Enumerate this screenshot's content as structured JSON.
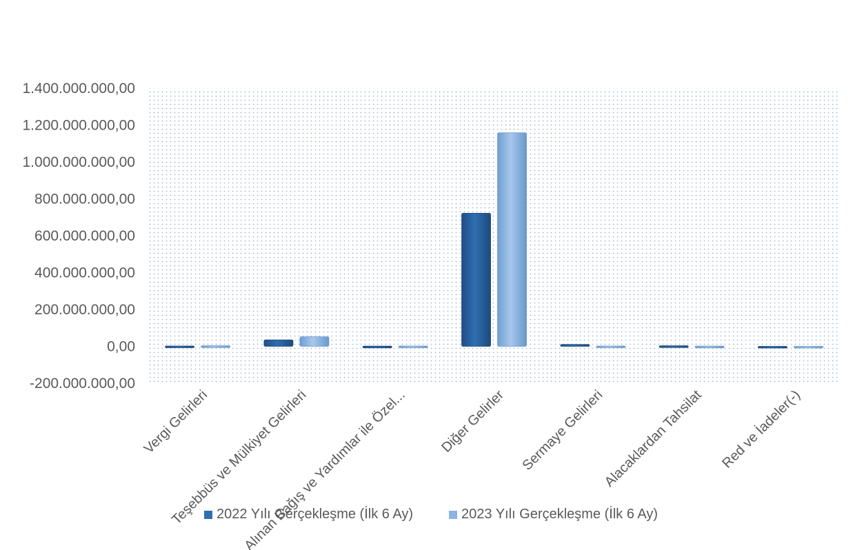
{
  "chart_data": {
    "type": "bar",
    "title": "",
    "xlabel": "",
    "ylabel": "",
    "ylim": [
      -200000000,
      1400000000
    ],
    "yticks": [
      -200000000,
      0,
      200000000,
      400000000,
      600000000,
      800000000,
      1000000000,
      1200000000,
      1400000000
    ],
    "ytick_labels": [
      "-200.000.000,00",
      "0,00",
      "200.000.000,00",
      "400.000.000,00",
      "600.000.000,00",
      "800.000.000,00",
      "1.000.000.000,00",
      "1.200.000.000,00",
      "1.400.000.000,00"
    ],
    "grid": true,
    "legend_position": "bottom",
    "categories": [
      "Vergi Gelirleri",
      "Teşebbüs ve Mülkiyet Gelirleri",
      "Alınan Bağış ve Yardımlar ile Özel...",
      "Diğer Gelirler",
      "Sermaye Gelirleri",
      "Alacaklardan Tahsilat",
      "Red ve İadeler(-)"
    ],
    "series": [
      {
        "name": "2022 Yılı Gerçekleşme (İlk 6 Ay)",
        "color": "#2f6eb0",
        "values": [
          2000000,
          35000000,
          1000000,
          722000000,
          10000000,
          3000000,
          -8000000
        ]
      },
      {
        "name": "2023 Yılı Gerçekleşme (İlk 6 Ay)",
        "color": "#8db4e2",
        "values": [
          3000000,
          52000000,
          2000000,
          1158000000,
          2000000,
          1000000,
          -6000000
        ]
      }
    ]
  }
}
